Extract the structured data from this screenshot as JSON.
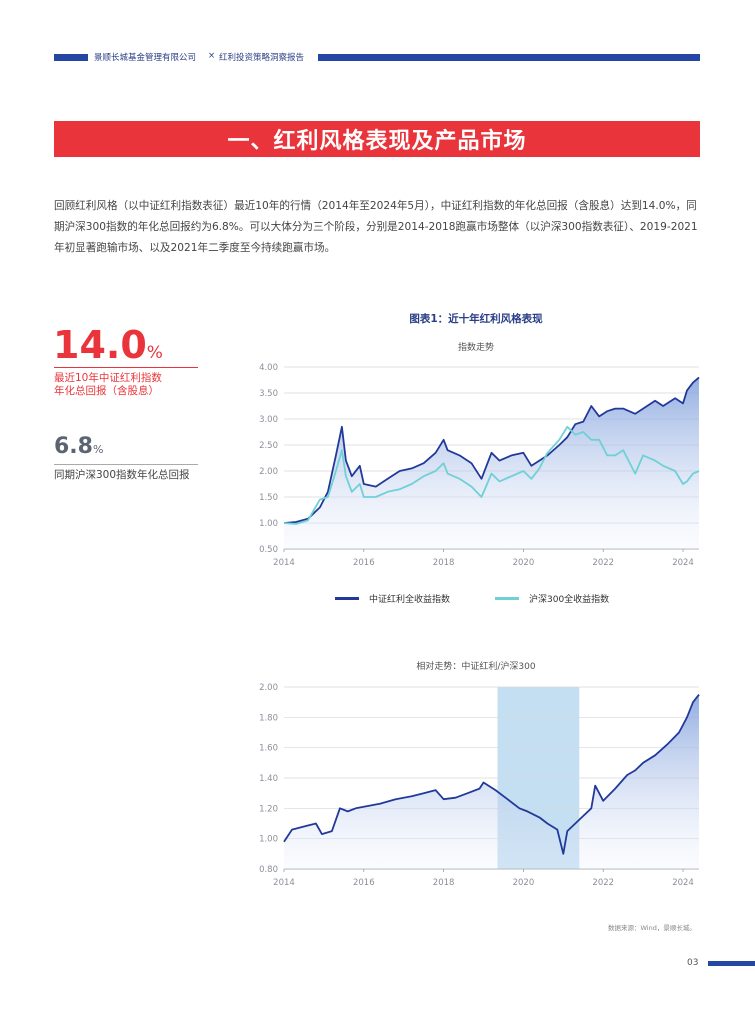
{
  "header": {
    "company": "景顺长城基金管理有限公司",
    "separator": "×",
    "report": "红利投资策略洞察报告"
  },
  "section_title": "一、红利风格表现及产品市场",
  "intro_lines": [
    "回顾红利风格（以中证红利指数表征）最近10年的行情（2014年至2024年5月），中证红利指数的年化总回报（含股息）达到14.0%，同",
    "期沪深300指数的年化总回报约为6.8%。可以大体分为三个阶段，分别是2014-2018跑赢市场整体（以沪深300指数表征）、2019-2021",
    "年初显著跑输市场、以及2021年二季度至今持续跑赢市场。"
  ],
  "stats": {
    "dividend_value": "14.0",
    "dividend_unit": "%",
    "dividend_label_1": "最近10年中证红利指数",
    "dividend_label_2": "年化总回报（含股息）",
    "hs300_value": "6.8",
    "hs300_unit": "%",
    "hs300_label": "同期沪深300指数年化总回报"
  },
  "figure_title": "图表1：近十年红利风格表现",
  "source": "数据来源：Wind，景顺长城。",
  "page_number": "03",
  "colors": {
    "dividend": "#22399a",
    "hs300": "#6fd0d6",
    "accent_red": "#e8343a",
    "shade": "#c5dff2"
  },
  "chart_data": [
    {
      "type": "line",
      "title": "指数走势",
      "x_ticks": [
        "2014",
        "2016",
        "2018",
        "2020",
        "2022",
        "2024"
      ],
      "y_ticks": [
        "4.00",
        "3.50",
        "3.00",
        "2.50",
        "2.00",
        "1.50",
        "1.00",
        "0.50"
      ],
      "ylim": [
        0.5,
        4.0
      ],
      "xlim": [
        2014.0,
        2024.4
      ],
      "legend_position": "bottom",
      "series": [
        {
          "name": "中证红利全收益指数",
          "points": [
            [
              2014.0,
              1.0
            ],
            [
              2014.3,
              1.02
            ],
            [
              2014.6,
              1.08
            ],
            [
              2014.9,
              1.3
            ],
            [
              2015.1,
              1.6
            ],
            [
              2015.3,
              2.3
            ],
            [
              2015.45,
              2.85
            ],
            [
              2015.55,
              2.2
            ],
            [
              2015.7,
              1.9
            ],
            [
              2015.9,
              2.1
            ],
            [
              2016.0,
              1.75
            ],
            [
              2016.3,
              1.7
            ],
            [
              2016.6,
              1.85
            ],
            [
              2016.9,
              2.0
            ],
            [
              2017.2,
              2.05
            ],
            [
              2017.5,
              2.15
            ],
            [
              2017.8,
              2.35
            ],
            [
              2018.0,
              2.6
            ],
            [
              2018.1,
              2.4
            ],
            [
              2018.4,
              2.3
            ],
            [
              2018.7,
              2.15
            ],
            [
              2018.95,
              1.85
            ],
            [
              2019.2,
              2.35
            ],
            [
              2019.4,
              2.2
            ],
            [
              2019.7,
              2.3
            ],
            [
              2020.0,
              2.35
            ],
            [
              2020.2,
              2.1
            ],
            [
              2020.4,
              2.2
            ],
            [
              2020.6,
              2.3
            ],
            [
              2020.9,
              2.5
            ],
            [
              2021.1,
              2.65
            ],
            [
              2021.3,
              2.9
            ],
            [
              2021.5,
              2.95
            ],
            [
              2021.7,
              3.25
            ],
            [
              2021.9,
              3.05
            ],
            [
              2022.1,
              3.15
            ],
            [
              2022.3,
              3.2
            ],
            [
              2022.5,
              3.2
            ],
            [
              2022.8,
              3.1
            ],
            [
              2023.0,
              3.2
            ],
            [
              2023.3,
              3.35
            ],
            [
              2023.5,
              3.25
            ],
            [
              2023.8,
              3.4
            ],
            [
              2024.0,
              3.3
            ],
            [
              2024.1,
              3.55
            ],
            [
              2024.25,
              3.7
            ],
            [
              2024.4,
              3.8
            ]
          ]
        },
        {
          "name": "沪深300全收益指数",
          "points": [
            [
              2014.0,
              1.0
            ],
            [
              2014.3,
              0.98
            ],
            [
              2014.6,
              1.05
            ],
            [
              2014.9,
              1.45
            ],
            [
              2015.1,
              1.5
            ],
            [
              2015.3,
              2.0
            ],
            [
              2015.45,
              2.4
            ],
            [
              2015.55,
              1.9
            ],
            [
              2015.7,
              1.6
            ],
            [
              2015.9,
              1.75
            ],
            [
              2016.0,
              1.5
            ],
            [
              2016.3,
              1.5
            ],
            [
              2016.6,
              1.6
            ],
            [
              2016.9,
              1.65
            ],
            [
              2017.2,
              1.75
            ],
            [
              2017.5,
              1.9
            ],
            [
              2017.8,
              2.0
            ],
            [
              2018.0,
              2.15
            ],
            [
              2018.1,
              1.95
            ],
            [
              2018.4,
              1.85
            ],
            [
              2018.7,
              1.7
            ],
            [
              2018.95,
              1.5
            ],
            [
              2019.2,
              1.95
            ],
            [
              2019.4,
              1.8
            ],
            [
              2019.7,
              1.9
            ],
            [
              2020.0,
              2.0
            ],
            [
              2020.2,
              1.85
            ],
            [
              2020.4,
              2.05
            ],
            [
              2020.6,
              2.35
            ],
            [
              2020.9,
              2.6
            ],
            [
              2021.1,
              2.85
            ],
            [
              2021.3,
              2.7
            ],
            [
              2021.5,
              2.75
            ],
            [
              2021.7,
              2.6
            ],
            [
              2021.9,
              2.6
            ],
            [
              2022.1,
              2.3
            ],
            [
              2022.3,
              2.3
            ],
            [
              2022.5,
              2.4
            ],
            [
              2022.8,
              1.95
            ],
            [
              2023.0,
              2.3
            ],
            [
              2023.3,
              2.2
            ],
            [
              2023.5,
              2.1
            ],
            [
              2023.8,
              2.0
            ],
            [
              2024.0,
              1.75
            ],
            [
              2024.1,
              1.8
            ],
            [
              2024.25,
              1.95
            ],
            [
              2024.4,
              2.0
            ]
          ]
        }
      ]
    },
    {
      "type": "area",
      "title": "相对走势：中证红利/沪深300",
      "x_ticks": [
        "2014",
        "2016",
        "2018",
        "2020",
        "2022",
        "2024"
      ],
      "y_ticks": [
        "2.00",
        "1.80",
        "1.60",
        "1.40",
        "1.20",
        "1.00",
        "0.80"
      ],
      "ylim": [
        0.8,
        2.0
      ],
      "xlim": [
        2014.0,
        2024.4
      ],
      "shaded_range": [
        2019.35,
        2021.4
      ],
      "series": [
        {
          "name": "中证红利/沪深300",
          "points": [
            [
              2014.0,
              0.98
            ],
            [
              2014.2,
              1.06
            ],
            [
              2014.5,
              1.08
            ],
            [
              2014.8,
              1.1
            ],
            [
              2014.95,
              1.03
            ],
            [
              2015.2,
              1.05
            ],
            [
              2015.4,
              1.2
            ],
            [
              2015.6,
              1.18
            ],
            [
              2015.8,
              1.2
            ],
            [
              2016.0,
              1.21
            ],
            [
              2016.4,
              1.23
            ],
            [
              2016.8,
              1.26
            ],
            [
              2017.2,
              1.28
            ],
            [
              2017.5,
              1.3
            ],
            [
              2017.8,
              1.32
            ],
            [
              2018.0,
              1.26
            ],
            [
              2018.3,
              1.27
            ],
            [
              2018.6,
              1.3
            ],
            [
              2018.9,
              1.33
            ],
            [
              2019.0,
              1.37
            ],
            [
              2019.3,
              1.32
            ],
            [
              2019.6,
              1.26
            ],
            [
              2019.9,
              1.2
            ],
            [
              2020.1,
              1.18
            ],
            [
              2020.4,
              1.14
            ],
            [
              2020.6,
              1.1
            ],
            [
              2020.85,
              1.06
            ],
            [
              2021.0,
              0.9
            ],
            [
              2021.1,
              1.05
            ],
            [
              2021.3,
              1.1
            ],
            [
              2021.5,
              1.15
            ],
            [
              2021.7,
              1.2
            ],
            [
              2021.8,
              1.35
            ],
            [
              2022.0,
              1.25
            ],
            [
              2022.3,
              1.33
            ],
            [
              2022.6,
              1.42
            ],
            [
              2022.8,
              1.45
            ],
            [
              2023.0,
              1.5
            ],
            [
              2023.3,
              1.55
            ],
            [
              2023.6,
              1.62
            ],
            [
              2023.9,
              1.7
            ],
            [
              2024.1,
              1.8
            ],
            [
              2024.25,
              1.9
            ],
            [
              2024.4,
              1.95
            ]
          ]
        }
      ]
    }
  ]
}
